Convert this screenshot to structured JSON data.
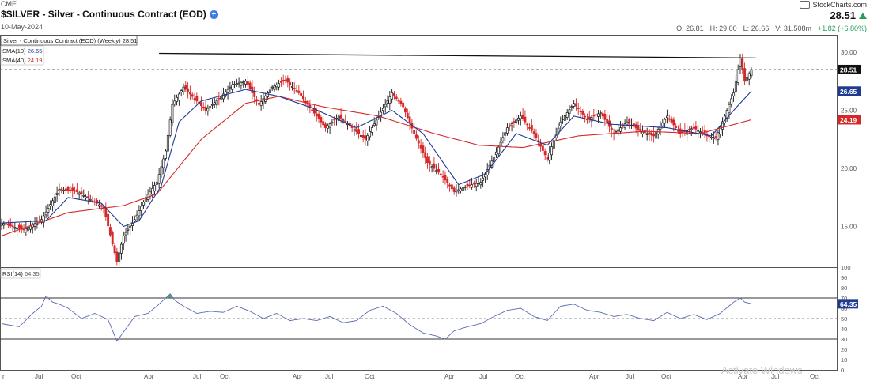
{
  "header": {
    "exchange": "CME",
    "title": "$SILVER - Silver - Continuous Contract (EOD)",
    "date": "10-May-2024",
    "brand": "StockCharts.com",
    "last": "28.51",
    "ohlc": {
      "o_label": "O:",
      "o": "26.81",
      "h_label": "H:",
      "h": "29.00",
      "l_label": "L:",
      "l": "26.66",
      "v_label": "V:",
      "v": "31.508m",
      "change": "+1.82 (+6.80%)"
    }
  },
  "legend": {
    "price": "Silver - Continuous Contract (EOD) (Weekly) 28.51",
    "sma10_label": "SMA(10)",
    "sma10_value": "26.65",
    "sma40_label": "SMA(40)",
    "sma40_value": "24.19",
    "rsi_label": "RSI(14)",
    "rsi_value": "64.35"
  },
  "colors": {
    "up": "#1a1a1a",
    "down": "#d62828",
    "sma10": "#1f3a93",
    "sma40": "#d62828",
    "rsi": "#5a6bb0",
    "overbought_fill": "#2e7d5b",
    "trendline": "#111111"
  },
  "chart_data": [
    {
      "type": "candlestick",
      "title": "Silver - Continuous Contract (EOD) (Weekly)",
      "interval": "weekly",
      "y_ticks": [
        15,
        20,
        25,
        30
      ],
      "y_tick_labels": [
        "15.00",
        "20.00",
        "25.00",
        "30.00"
      ],
      "ylim": [
        11.5,
        31.5
      ],
      "x_tick_labels": [
        "Jul",
        "Oct",
        "Apr",
        "Jul",
        "Oct",
        "Apr",
        "Jul",
        "Oct",
        "Apr",
        "Jul",
        "Oct",
        "Apr",
        "Jul",
        "Oct"
      ],
      "grid": false,
      "reference_levels": [
        {
          "label": "28.51",
          "value": 28.51,
          "style": "dashed"
        },
        {
          "label": "26.65",
          "value": 26.65
        },
        {
          "label": "24.19",
          "value": 24.19
        }
      ],
      "resistance_line": {
        "from": 29.9,
        "to": 29.5
      },
      "anchors": [
        [
          0,
          15.3
        ],
        [
          10,
          14.7
        ],
        [
          18,
          15.6
        ],
        [
          26,
          18.2
        ],
        [
          34,
          18.0
        ],
        [
          43,
          17.0
        ],
        [
          46,
          16.6
        ],
        [
          50,
          13.5
        ],
        [
          52,
          12.0
        ],
        [
          55,
          14.2
        ],
        [
          60,
          15.6
        ],
        [
          65,
          17.5
        ],
        [
          70,
          18.8
        ],
        [
          74,
          21.5
        ],
        [
          77,
          25.5
        ],
        [
          82,
          27.0
        ],
        [
          87,
          26.0
        ],
        [
          92,
          25.0
        ],
        [
          98,
          26.0
        ],
        [
          104,
          27.2
        ],
        [
          110,
          27.5
        ],
        [
          116,
          25.5
        ],
        [
          122,
          27.0
        ],
        [
          128,
          27.6
        ],
        [
          134,
          26.5
        ],
        [
          140,
          25.0
        ],
        [
          146,
          23.5
        ],
        [
          152,
          24.5
        ],
        [
          158,
          23.5
        ],
        [
          164,
          22.5
        ],
        [
          170,
          24.5
        ],
        [
          176,
          26.5
        ],
        [
          181,
          25.3
        ],
        [
          186,
          23.0
        ],
        [
          192,
          20.5
        ],
        [
          198,
          19.5
        ],
        [
          204,
          18.0
        ],
        [
          210,
          18.5
        ],
        [
          216,
          18.8
        ],
        [
          222,
          21.0
        ],
        [
          228,
          23.5
        ],
        [
          234,
          24.5
        ],
        [
          240,
          23.0
        ],
        [
          246,
          20.8
        ],
        [
          252,
          24.0
        ],
        [
          258,
          25.6
        ],
        [
          264,
          24.2
        ],
        [
          270,
          24.8
        ],
        [
          276,
          23.0
        ],
        [
          282,
          24.0
        ],
        [
          288,
          23.2
        ],
        [
          294,
          22.8
        ],
        [
          300,
          24.5
        ],
        [
          306,
          23.0
        ],
        [
          312,
          23.5
        ],
        [
          318,
          22.8
        ],
        [
          322,
          22.6
        ],
        [
          326,
          24.5
        ],
        [
          330,
          26.5
        ],
        [
          333,
          29.5
        ],
        [
          335,
          27.5
        ],
        [
          338,
          28.5
        ]
      ],
      "sma10_anchors": [
        [
          0,
          15.3
        ],
        [
          20,
          15.5
        ],
        [
          30,
          17.5
        ],
        [
          45,
          17.0
        ],
        [
          55,
          15.0
        ],
        [
          62,
          15.5
        ],
        [
          72,
          18.5
        ],
        [
          80,
          24.0
        ],
        [
          90,
          25.8
        ],
        [
          110,
          26.8
        ],
        [
          125,
          26.2
        ],
        [
          140,
          25.2
        ],
        [
          160,
          23.5
        ],
        [
          176,
          25.0
        ],
        [
          190,
          23.0
        ],
        [
          206,
          18.6
        ],
        [
          218,
          19.5
        ],
        [
          232,
          23.0
        ],
        [
          246,
          22.0
        ],
        [
          258,
          24.5
        ],
        [
          275,
          23.8
        ],
        [
          300,
          23.5
        ],
        [
          320,
          22.8
        ],
        [
          330,
          25.0
        ],
        [
          338,
          26.65
        ]
      ],
      "sma40_anchors": [
        [
          0,
          14.2
        ],
        [
          30,
          16.2
        ],
        [
          55,
          16.8
        ],
        [
          70,
          17.8
        ],
        [
          90,
          22.5
        ],
        [
          110,
          25.6
        ],
        [
          125,
          26.2
        ],
        [
          145,
          25.3
        ],
        [
          170,
          24.5
        ],
        [
          195,
          23.0
        ],
        [
          215,
          22.0
        ],
        [
          235,
          21.8
        ],
        [
          260,
          22.8
        ],
        [
          290,
          23.2
        ],
        [
          315,
          23.0
        ],
        [
          338,
          24.19
        ]
      ]
    },
    {
      "type": "line",
      "title": "RSI(14)",
      "y_ticks": [
        0,
        10,
        20,
        30,
        40,
        50,
        60,
        70,
        80,
        90,
        100
      ],
      "ylim": [
        0,
        100
      ],
      "reference_levels": [
        70,
        50,
        30
      ],
      "rsi_anchors": [
        [
          0,
          45
        ],
        [
          8,
          42
        ],
        [
          14,
          55
        ],
        [
          18,
          62
        ],
        [
          20,
          72
        ],
        [
          23,
          66
        ],
        [
          26,
          64
        ],
        [
          30,
          60
        ],
        [
          36,
          50
        ],
        [
          42,
          55
        ],
        [
          48,
          49
        ],
        [
          52,
          28
        ],
        [
          56,
          40
        ],
        [
          60,
          52
        ],
        [
          66,
          55
        ],
        [
          70,
          62
        ],
        [
          74,
          70
        ],
        [
          76,
          74
        ],
        [
          78,
          68
        ],
        [
          82,
          62
        ],
        [
          88,
          55
        ],
        [
          94,
          57
        ],
        [
          100,
          56
        ],
        [
          106,
          62
        ],
        [
          112,
          57
        ],
        [
          118,
          50
        ],
        [
          124,
          55
        ],
        [
          130,
          48
        ],
        [
          136,
          50
        ],
        [
          142,
          48
        ],
        [
          148,
          52
        ],
        [
          154,
          46
        ],
        [
          160,
          48
        ],
        [
          166,
          58
        ],
        [
          172,
          62
        ],
        [
          178,
          55
        ],
        [
          184,
          44
        ],
        [
          190,
          36
        ],
        [
          196,
          33
        ],
        [
          200,
          30
        ],
        [
          204,
          38
        ],
        [
          210,
          42
        ],
        [
          216,
          45
        ],
        [
          222,
          52
        ],
        [
          228,
          58
        ],
        [
          234,
          60
        ],
        [
          240,
          52
        ],
        [
          246,
          48
        ],
        [
          252,
          62
        ],
        [
          258,
          64
        ],
        [
          264,
          58
        ],
        [
          270,
          56
        ],
        [
          276,
          52
        ],
        [
          282,
          54
        ],
        [
          288,
          50
        ],
        [
          294,
          48
        ],
        [
          300,
          56
        ],
        [
          306,
          50
        ],
        [
          312,
          54
        ],
        [
          318,
          49
        ],
        [
          324,
          55
        ],
        [
          330,
          66
        ],
        [
          333,
          70
        ],
        [
          335,
          66
        ],
        [
          338,
          64.35
        ]
      ]
    }
  ]
}
